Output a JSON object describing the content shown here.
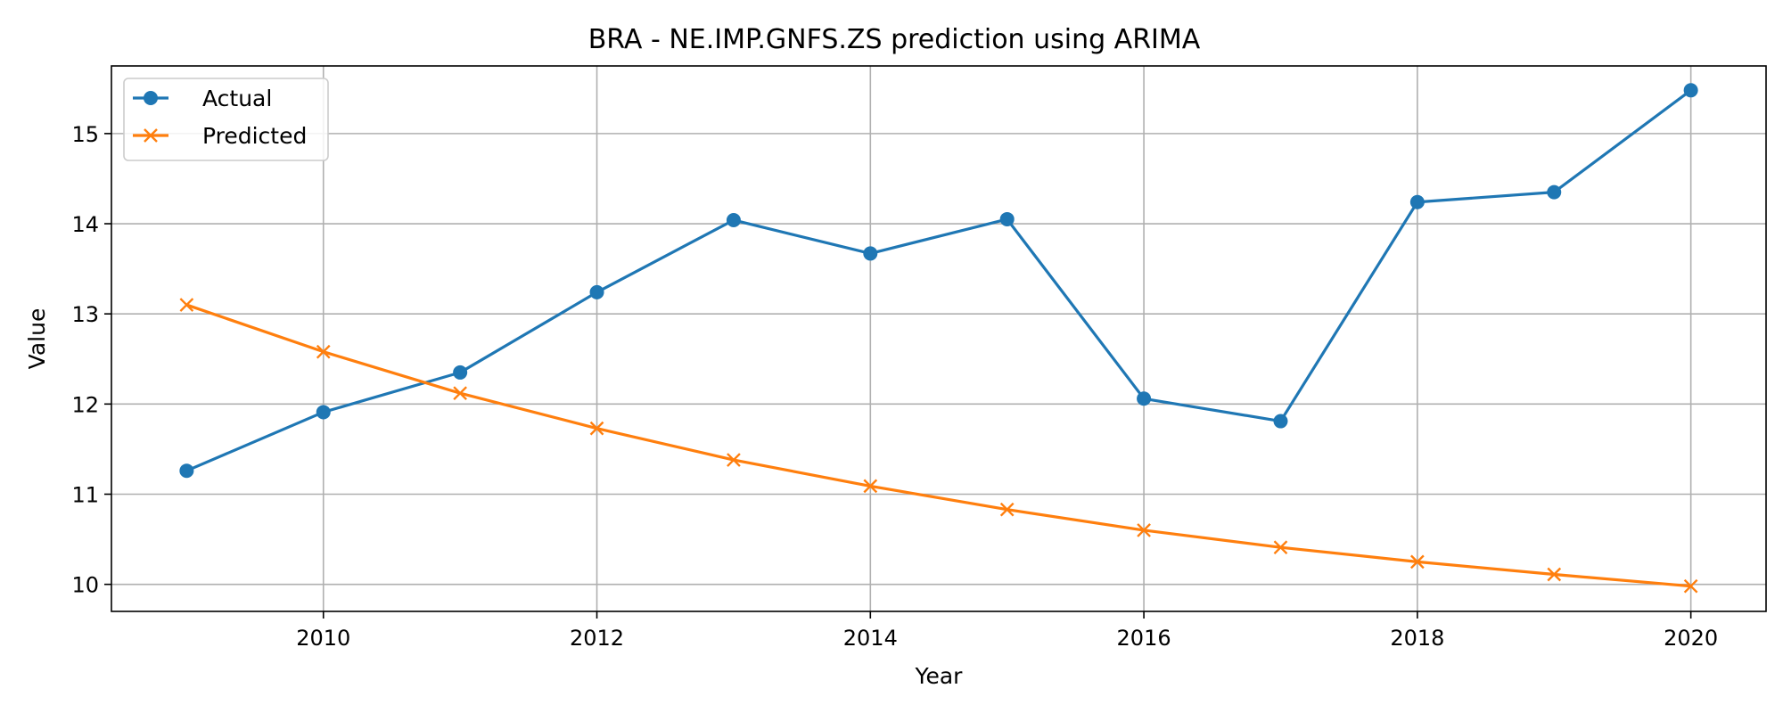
{
  "chart_data": {
    "type": "line",
    "title": "BRA - NE.IMP.GNFS.ZS prediction using ARIMA",
    "xlabel": "Year",
    "ylabel": "Value",
    "xlim": [
      2008.45,
      2020.55
    ],
    "ylim": [
      9.7,
      15.75
    ],
    "xticks": [
      2010,
      2012,
      2014,
      2016,
      2018,
      2020
    ],
    "yticks": [
      10,
      11,
      12,
      13,
      14,
      15
    ],
    "grid": true,
    "legend_position": "top-left",
    "x": [
      2009,
      2010,
      2011,
      2012,
      2013,
      2014,
      2015,
      2016,
      2017,
      2018,
      2019,
      2020
    ],
    "series": [
      {
        "name": "Actual",
        "color": "#1f77b4",
        "marker": "circle",
        "values": [
          11.26,
          11.91,
          12.35,
          13.24,
          14.04,
          13.67,
          14.05,
          12.06,
          11.81,
          14.24,
          14.35,
          15.48
        ]
      },
      {
        "name": "Predicted",
        "color": "#ff7f0e",
        "marker": "x",
        "values": [
          13.1,
          12.58,
          12.12,
          11.73,
          11.38,
          11.09,
          10.83,
          10.6,
          10.41,
          10.25,
          10.11,
          9.98
        ]
      }
    ]
  }
}
